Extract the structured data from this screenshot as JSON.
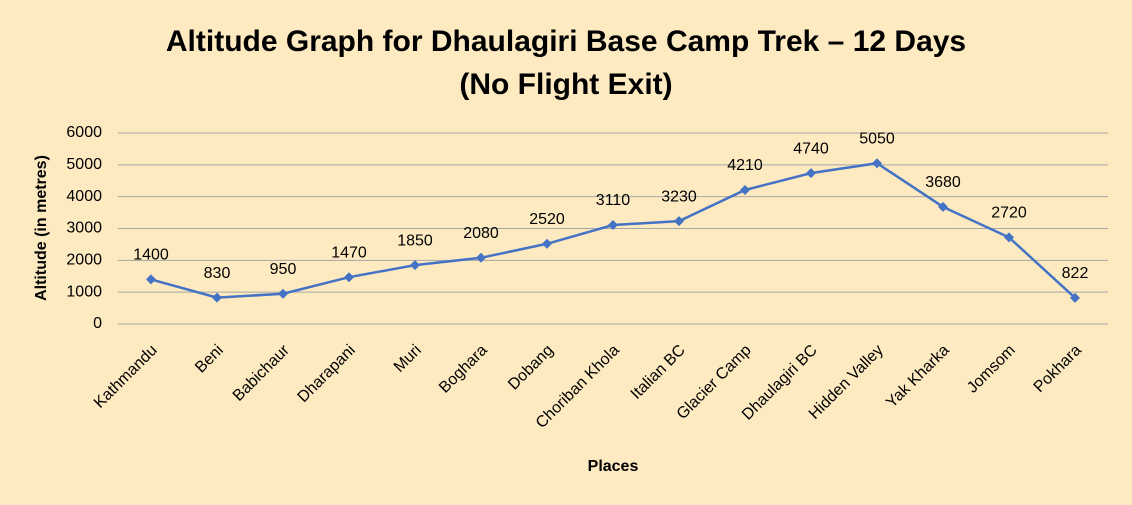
{
  "chart_data": {
    "type": "line",
    "title": [
      "Altitude Graph for Dhaulagiri Base Camp Trek – 12 Days",
      "(No Flight Exit)"
    ],
    "x_label": "Places",
    "y_label": "Altitude (in metres)",
    "categories": [
      "Kathmandu",
      "Beni",
      "Babichaur",
      "Dharapani",
      "Muri",
      "Boghara",
      "Dobang",
      "Choriban Khola",
      "Italian BC",
      "Glacier Camp",
      "Dhaulagiri BC",
      "Hidden Valley",
      "Yak Kharka",
      "Jomsom",
      "Pokhara"
    ],
    "series": [
      {
        "name": "Altitude",
        "color": "#4472c4",
        "values": [
          1400,
          830,
          950,
          1470,
          1850,
          2080,
          2520,
          3110,
          3230,
          4210,
          4740,
          5050,
          3680,
          2720,
          822
        ]
      }
    ],
    "ylim": [
      0,
      6000
    ],
    "yticks": [
      0,
      1000,
      2000,
      3000,
      4000,
      5000,
      6000
    ],
    "grid": true
  }
}
